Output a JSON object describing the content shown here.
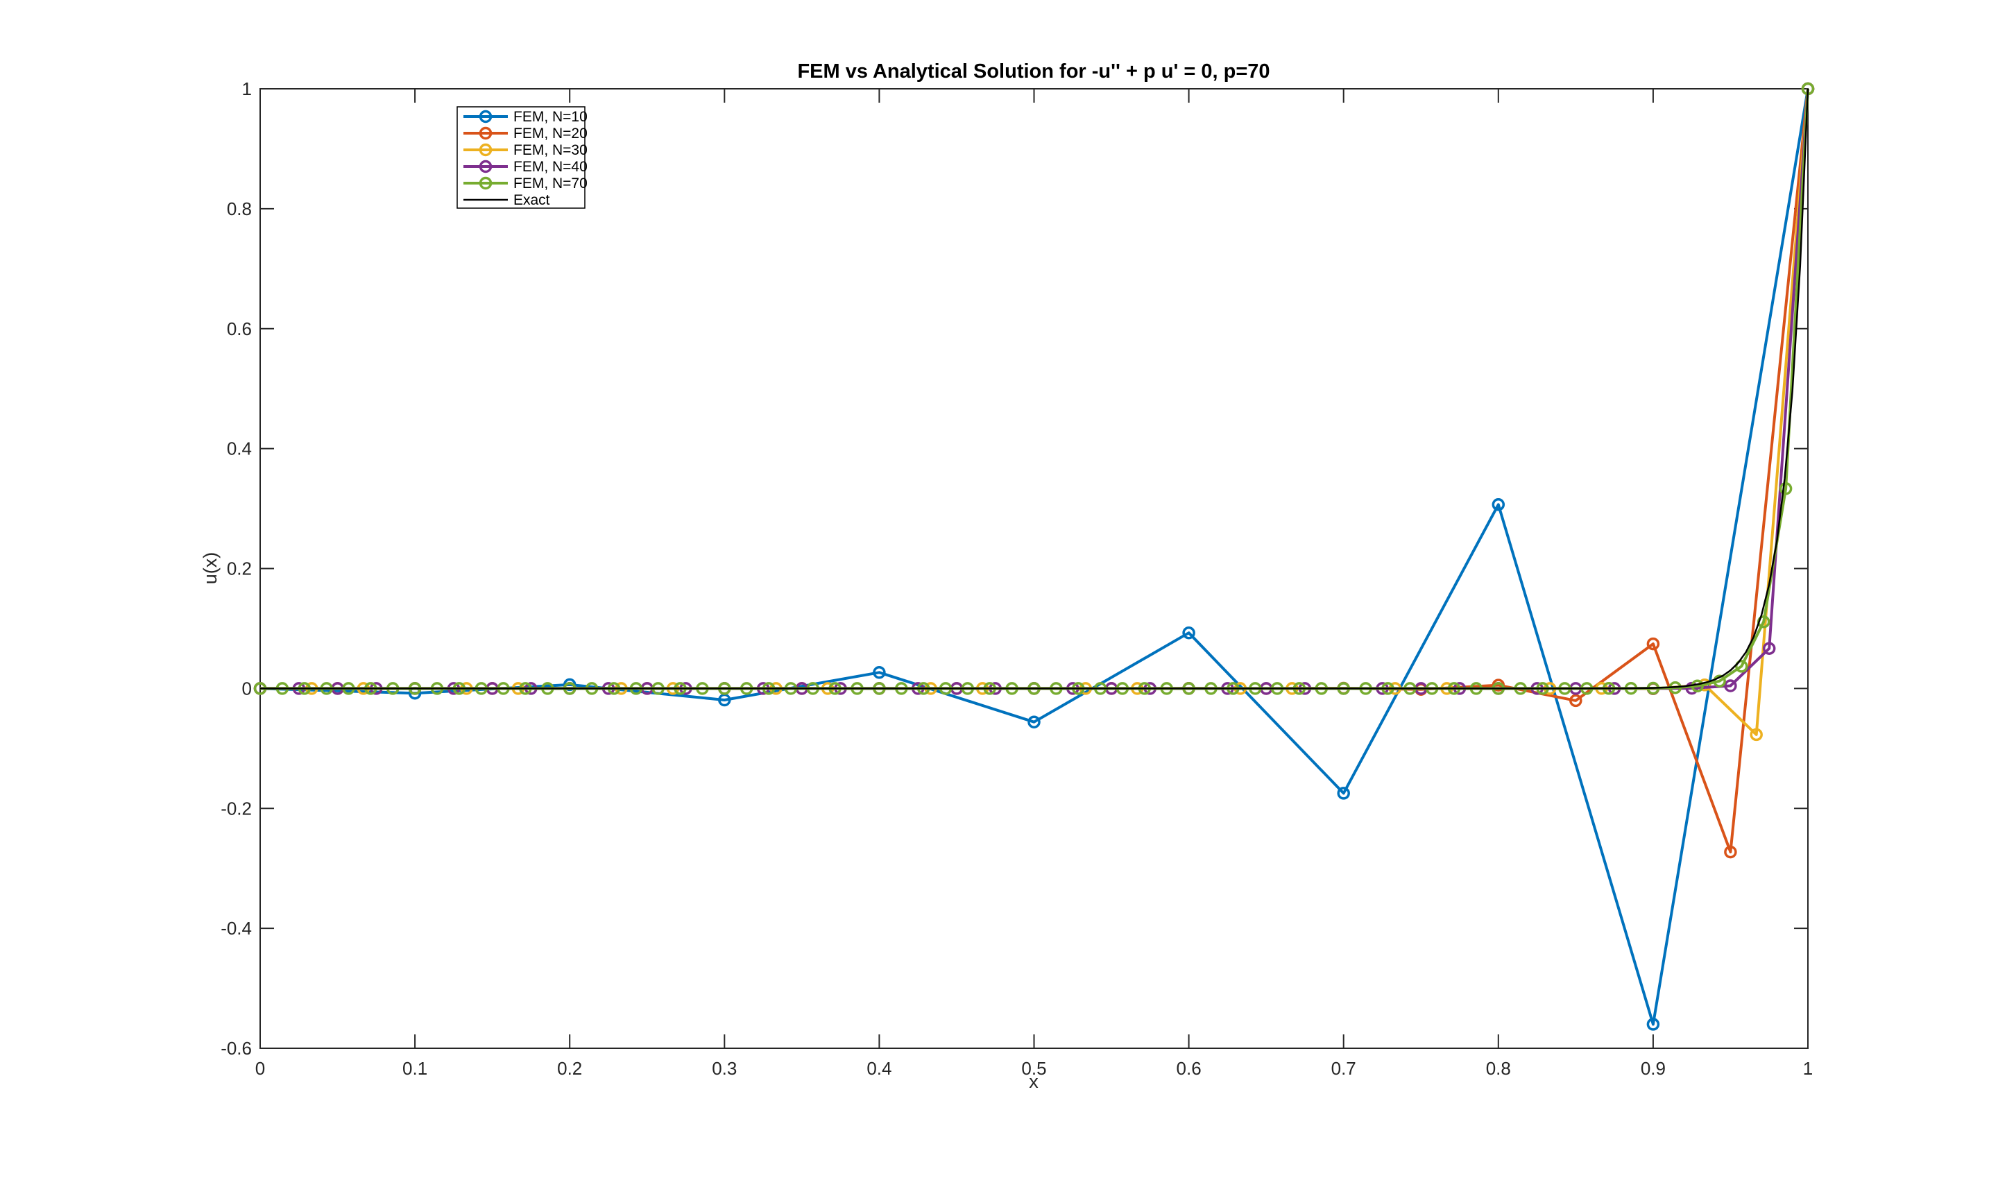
{
  "figure": {
    "background": "#ffffff",
    "axes_color": "#262626"
  },
  "chart_data": {
    "type": "line",
    "title": "FEM vs Analytical Solution for -u'' + p u' = 0,  p=70",
    "xlabel": "x",
    "ylabel": "u(x)",
    "xlim": [
      0,
      1
    ],
    "ylim": [
      -0.6,
      1
    ],
    "grid": false,
    "xticks": [
      0,
      0.1,
      0.2,
      0.3,
      0.4,
      0.5,
      0.6,
      0.7,
      0.8,
      0.9,
      1
    ],
    "xtick_labels": [
      "0",
      "0.1",
      "0.2",
      "0.3",
      "0.4",
      "0.5",
      "0.6",
      "0.7",
      "0.8",
      "0.9",
      "1"
    ],
    "yticks": [
      -0.6,
      -0.4,
      -0.2,
      0,
      0.2,
      0.4,
      0.6,
      0.8,
      1
    ],
    "ytick_labels": [
      "-0.6",
      "-0.4",
      "-0.2",
      "0",
      "0.2",
      "0.4",
      "0.6",
      "0.8",
      "1"
    ],
    "legend": {
      "position": "upper-left-inside",
      "border_color": "#000000",
      "background": "#ffffff"
    },
    "series": [
      {
        "name": "FEM, N=10",
        "color": "#0072BD",
        "marker": "o",
        "x": [
          0,
          0.1,
          0.2,
          0.3,
          0.4,
          0.5,
          0.6,
          0.7,
          0.8,
          0.9,
          1
        ],
        "y": [
          0,
          -0.007864,
          0.006291,
          -0.019188,
          0.026675,
          -0.055879,
          0.092719,
          -0.174758,
          0.3067,
          -0.559926,
          1
        ]
      },
      {
        "name": "FEM, N=20",
        "color": "#D95319",
        "marker": "o",
        "x": [
          0,
          0.05,
          0.1,
          0.15,
          0.2,
          0.25,
          0.3,
          0.35,
          0.4,
          0.45,
          0.5,
          0.55,
          0.6,
          0.65,
          0.7,
          0.75,
          0.8,
          0.85,
          0.9,
          0.95,
          1
        ],
        "y": [
          0,
          0,
          0,
          0,
          0,
          0,
          0,
          0,
          0,
          0,
          2e-06,
          -8e-06,
          3.1e-05,
          -0.000112,
          0.000412,
          -0.001509,
          0.005532,
          -0.020286,
          0.07438,
          -0.272727,
          1
        ]
      },
      {
        "name": "FEM, N=30",
        "color": "#EDB120",
        "marker": "o",
        "x": [
          0,
          0.0333,
          0.0667,
          0.1,
          0.1333,
          0.1667,
          0.2,
          0.2333,
          0.2667,
          0.3,
          0.3333,
          0.3667,
          0.4,
          0.4333,
          0.4667,
          0.5,
          0.5333,
          0.5667,
          0.6,
          0.6333,
          0.6667,
          0.7,
          0.7333,
          0.7667,
          0.8,
          0.8333,
          0.8667,
          0.9,
          0.9333,
          0.9667,
          1
        ],
        "y": [
          0,
          0,
          0,
          0,
          0,
          0,
          0,
          0,
          0,
          0,
          0,
          0,
          0,
          0,
          0,
          0,
          0,
          0,
          0,
          0,
          0,
          0,
          0,
          0,
          0,
          -3e-06,
          3.5e-05,
          -0.000455,
          0.005917,
          -0.076923,
          1
        ]
      },
      {
        "name": "FEM, N=40",
        "color": "#7E2F8E",
        "marker": "o",
        "x": [
          0,
          0.025,
          0.05,
          0.075,
          0.1,
          0.125,
          0.15,
          0.175,
          0.2,
          0.225,
          0.25,
          0.275,
          0.3,
          0.325,
          0.35,
          0.375,
          0.4,
          0.425,
          0.45,
          0.475,
          0.5,
          0.525,
          0.55,
          0.575,
          0.6,
          0.625,
          0.65,
          0.675,
          0.7,
          0.725,
          0.75,
          0.775,
          0.8,
          0.825,
          0.85,
          0.875,
          0.9,
          0.925,
          0.95,
          0.975,
          1
        ],
        "y": [
          0,
          0,
          0,
          0,
          0,
          0,
          0,
          0,
          0,
          0,
          0,
          0,
          0,
          0,
          0,
          0,
          0,
          0,
          0,
          0,
          0,
          0,
          0,
          0,
          0,
          0,
          0,
          0,
          0,
          0,
          0,
          0,
          0,
          0,
          0,
          1e-06,
          2e-05,
          0.000296,
          0.004444,
          0.066667,
          1
        ]
      },
      {
        "name": "FEM, N=70",
        "color": "#77AC30",
        "marker": "o",
        "x": [
          0,
          0.0143,
          0.0286,
          0.0429,
          0.0571,
          0.0714,
          0.0857,
          0.1,
          0.1143,
          0.1286,
          0.1429,
          0.1571,
          0.1714,
          0.1857,
          0.2,
          0.2143,
          0.2286,
          0.2429,
          0.2571,
          0.2714,
          0.2857,
          0.3,
          0.3143,
          0.3286,
          0.3429,
          0.3571,
          0.3714,
          0.3857,
          0.4,
          0.4143,
          0.4286,
          0.4429,
          0.4571,
          0.4714,
          0.4857,
          0.5,
          0.5143,
          0.5286,
          0.5429,
          0.5571,
          0.5714,
          0.5857,
          0.6,
          0.6143,
          0.6286,
          0.6429,
          0.6571,
          0.6714,
          0.6857,
          0.7,
          0.7143,
          0.7286,
          0.7429,
          0.7571,
          0.7714,
          0.7857,
          0.8,
          0.8143,
          0.8286,
          0.8429,
          0.8571,
          0.8714,
          0.8857,
          0.9,
          0.9143,
          0.9286,
          0.9429,
          0.9571,
          0.9714,
          0.9857,
          1
        ],
        "y": [
          0,
          0,
          0,
          0,
          0,
          0,
          0,
          0,
          0,
          0,
          0,
          0,
          0,
          0,
          0,
          0,
          0,
          0,
          0,
          0,
          0,
          0,
          0,
          0,
          0,
          0,
          0,
          0,
          0,
          0,
          0,
          0,
          0,
          0,
          0,
          0,
          0,
          0,
          0,
          0,
          0,
          0,
          0,
          0,
          0,
          0,
          0,
          0,
          0,
          0,
          0,
          0,
          0,
          0,
          0,
          0,
          0,
          0,
          0,
          0,
          1.7e-05,
          5.1e-05,
          0.000152,
          0.000457,
          0.001372,
          0.004115,
          0.012346,
          0.037037,
          0.111111,
          0.333333,
          1
        ]
      },
      {
        "name": "Exact",
        "color": "#000000",
        "marker": "none",
        "x": [
          0,
          0.1,
          0.2,
          0.3,
          0.4,
          0.5,
          0.6,
          0.7,
          0.8,
          0.84,
          0.86,
          0.88,
          0.9,
          0.905,
          0.91,
          0.915,
          0.92,
          0.925,
          0.93,
          0.935,
          0.94,
          0.945,
          0.95,
          0.955,
          0.96,
          0.965,
          0.97,
          0.975,
          0.98,
          0.985,
          0.99,
          0.995,
          1
        ],
        "y": [
          0,
          0,
          0,
          0,
          0,
          0,
          0,
          0,
          1e-06,
          1.4e-05,
          5.5e-05,
          0.000224,
          0.000912,
          0.001292,
          0.001836,
          0.002599,
          0.003698,
          0.005248,
          0.007447,
          0.010567,
          0.014996,
          0.02128,
          0.030197,
          0.042852,
          0.06081,
          0.086294,
          0.122456,
          0.173774,
          0.246597,
          0.349938,
          0.496585,
          0.704688,
          1
        ]
      }
    ]
  }
}
